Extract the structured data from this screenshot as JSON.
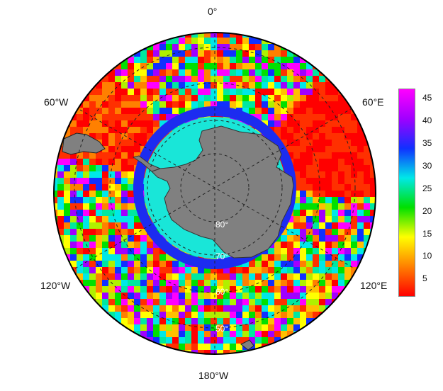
{
  "map": {
    "projection": "south-polar-stereographic",
    "longitude_labels": {
      "top": "0°",
      "upper_left": "60°W",
      "upper_right": "60°E",
      "lower_left": "120°W",
      "lower_right": "120°E",
      "bottom": "180°W"
    },
    "latitude_labels": [
      "80°",
      "70°",
      "60°",
      "50°"
    ],
    "colors": {
      "land": "#808080",
      "sea_ice": "#19e6d8",
      "ice_edge": "#1c2cf0",
      "frame": "#000000"
    }
  },
  "colorbar": {
    "min": 1,
    "max": 47,
    "ticks": [
      "45",
      "40",
      "35",
      "30",
      "25",
      "20",
      "15",
      "10",
      "5"
    ],
    "tick_values": [
      45,
      40,
      35,
      30,
      25,
      20,
      15,
      10,
      5
    ],
    "colors_low_to_high": [
      "#ff0000",
      "#ff8000",
      "#ffff00",
      "#00e000",
      "#00e8e8",
      "#1030ff",
      "#a000ff",
      "#ff00ff"
    ]
  }
}
